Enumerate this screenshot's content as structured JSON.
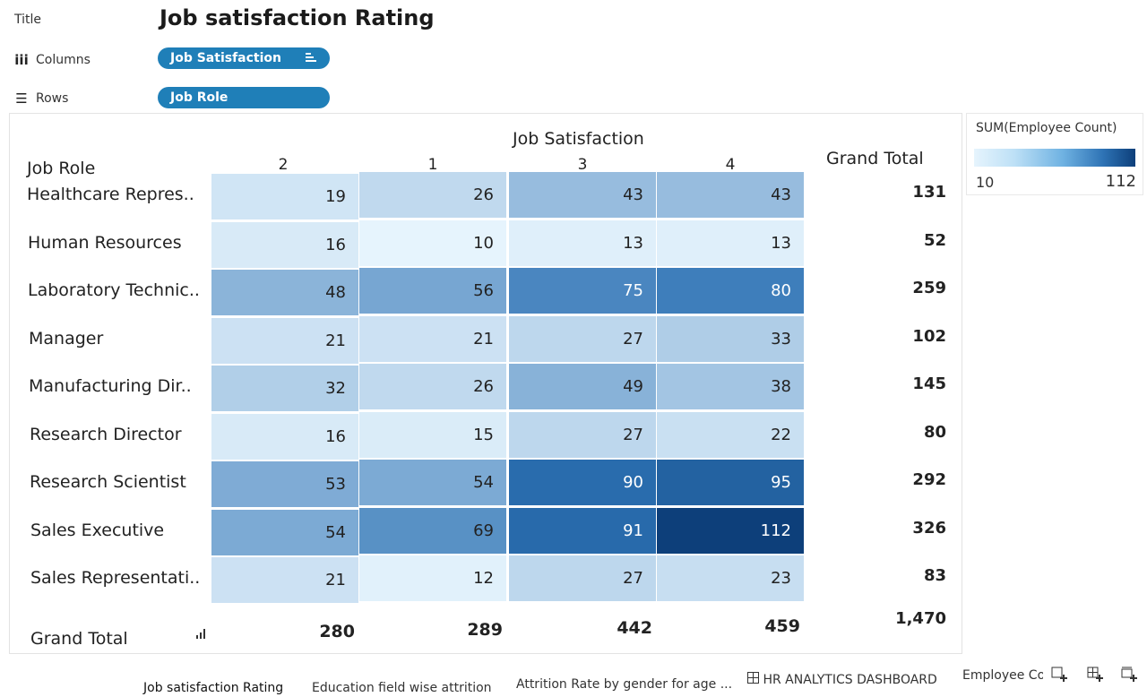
{
  "shelves": {
    "title_label": "Title",
    "columns_label": "Columns",
    "rows_label": "Rows",
    "columns_icon": "iii",
    "rows_icon": "☰",
    "sheet_title": "Job satisfaction Rating",
    "columns_pill": "Job Satisfaction",
    "rows_pill": "Job Role",
    "columns_pill_icon": "sort-icon"
  },
  "chart_data": {
    "type": "heatmap",
    "column_header_title": "Job Satisfaction",
    "row_header_title": "Job Role",
    "grand_total_label": "Grand Total",
    "categories": [
      "2",
      "1",
      "3",
      "4"
    ],
    "rows": [
      {
        "label": "Healthcare Repres..",
        "values": [
          19,
          26,
          43,
          43
        ],
        "total": "131"
      },
      {
        "label": "Human Resources",
        "values": [
          16,
          10,
          13,
          13
        ],
        "total": "52"
      },
      {
        "label": "Laboratory Technic..",
        "values": [
          48,
          56,
          75,
          80
        ],
        "total": "259"
      },
      {
        "label": "Manager",
        "values": [
          21,
          21,
          27,
          33
        ],
        "total": "102"
      },
      {
        "label": "Manufacturing Dir..",
        "values": [
          32,
          26,
          49,
          38
        ],
        "total": "145"
      },
      {
        "label": "Research Director",
        "values": [
          16,
          15,
          27,
          22
        ],
        "total": "80"
      },
      {
        "label": "Research Scientist",
        "values": [
          53,
          54,
          90,
          95
        ],
        "total": "292"
      },
      {
        "label": "Sales Executive",
        "values": [
          54,
          69,
          91,
          112
        ],
        "total": "326"
      },
      {
        "label": "Sales Representati..",
        "values": [
          21,
          12,
          27,
          23
        ],
        "total": "83"
      }
    ],
    "column_totals": [
      "280",
      "289",
      "442",
      "459"
    ],
    "grand_total": "1,470",
    "color_min": 10,
    "color_max": 112,
    "color_low": "#e6f4fd",
    "color_high": "#0d3f7a"
  },
  "legend": {
    "title": "SUM(Employee Count)",
    "min_label": "10",
    "max_label": "112"
  },
  "tabs": [
    {
      "label": "Job satisfaction Rating",
      "active": true
    },
    {
      "label": "Education field wise attrition",
      "active": false
    },
    {
      "label": "Attrition Rate by gender for age ...",
      "active": false
    },
    {
      "label": "HR ANALYTICS DASHBOARD",
      "active": false,
      "icon": "dashboard-icon"
    },
    {
      "label": "Employee Co",
      "active": false
    }
  ],
  "tab_buttons": [
    "new-worksheet-icon",
    "new-dashboard-icon",
    "new-story-icon"
  ]
}
